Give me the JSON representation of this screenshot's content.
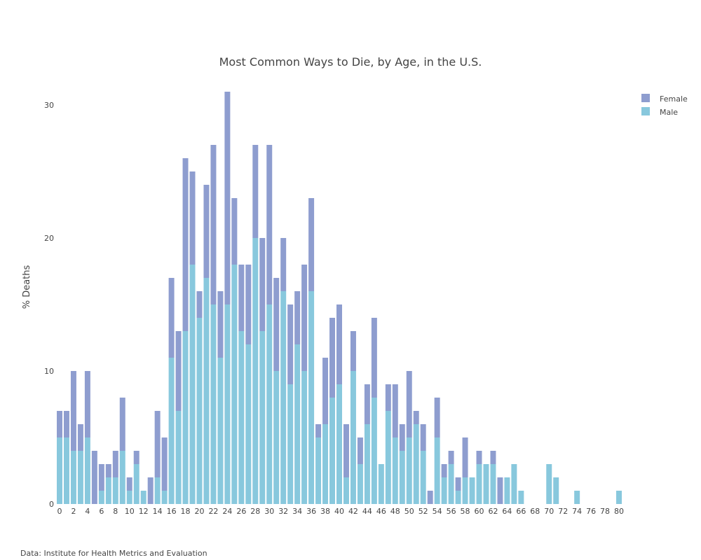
{
  "chart_data": {
    "type": "bar",
    "barmode": "stack",
    "title": "Most Common Ways to Die, by Age, in the U.S.",
    "ylabel": "% Deaths",
    "xlabel": "",
    "xlim": [
      0,
      80
    ],
    "ylim": [
      0,
      31
    ],
    "x_ticks": [
      0,
      2,
      4,
      6,
      8,
      10,
      12,
      14,
      16,
      18,
      20,
      22,
      24,
      26,
      28,
      30,
      32,
      34,
      36,
      38,
      40,
      42,
      44,
      46,
      48,
      50,
      52,
      54,
      56,
      58,
      60,
      62,
      64,
      66,
      68,
      70,
      72,
      74,
      76,
      78,
      80
    ],
    "y_ticks": [
      0,
      10,
      20,
      30
    ],
    "grid": false,
    "legend_position": "top-right",
    "x": [
      0,
      1,
      2,
      3,
      4,
      5,
      6,
      7,
      8,
      9,
      10,
      11,
      12,
      13,
      14,
      15,
      16,
      17,
      18,
      19,
      20,
      21,
      22,
      23,
      24,
      25,
      26,
      27,
      28,
      29,
      30,
      31,
      32,
      33,
      34,
      35,
      36,
      37,
      38,
      39,
      40,
      41,
      42,
      43,
      44,
      45,
      46,
      47,
      48,
      49,
      50,
      51,
      52,
      53,
      54,
      55,
      56,
      57,
      58,
      59,
      60,
      61,
      62,
      63,
      64,
      65,
      66,
      67,
      68,
      69,
      70,
      71,
      72,
      73,
      74,
      75,
      76,
      77,
      78,
      79,
      80
    ],
    "series": [
      {
        "name": "Male",
        "color": "#88c8dd",
        "values": [
          5,
          5,
          4,
          4,
          5,
          0,
          1,
          2,
          2,
          4,
          1,
          3,
          1,
          0,
          2,
          1,
          11,
          7,
          13,
          18,
          14,
          17,
          15,
          11,
          15,
          18,
          13,
          12,
          20,
          13,
          15,
          10,
          16,
          9,
          12,
          10,
          16,
          5,
          6,
          8,
          9,
          2,
          10,
          3,
          6,
          8,
          3,
          7,
          5,
          4,
          5,
          6,
          4,
          0,
          5,
          2,
          3,
          1,
          2,
          2,
          3,
          3,
          3,
          0,
          2,
          3,
          1,
          0,
          0,
          0,
          3,
          2,
          0,
          0,
          1,
          0,
          0,
          0,
          0,
          0,
          1
        ]
      },
      {
        "name": "Female",
        "color": "#8e9dcf",
        "values": [
          2,
          2,
          6,
          2,
          5,
          4,
          2,
          1,
          2,
          4,
          1,
          1,
          0,
          2,
          5,
          4,
          6,
          6,
          13,
          7,
          2,
          7,
          12,
          5,
          16,
          5,
          5,
          6,
          7,
          7,
          12,
          7,
          4,
          6,
          4,
          8,
          7,
          1,
          5,
          6,
          6,
          4,
          3,
          2,
          3,
          6,
          0,
          2,
          4,
          2,
          5,
          1,
          2,
          1,
          3,
          1,
          1,
          1,
          3,
          0,
          1,
          0,
          1,
          2,
          0,
          0,
          0,
          0,
          0,
          0,
          0,
          0,
          0,
          0,
          0,
          0,
          0,
          0,
          0,
          0,
          0
        ]
      }
    ],
    "legend_order": [
      "Female",
      "Male"
    ],
    "source": "Data: Institute for Health Metrics  and Evaluation"
  }
}
